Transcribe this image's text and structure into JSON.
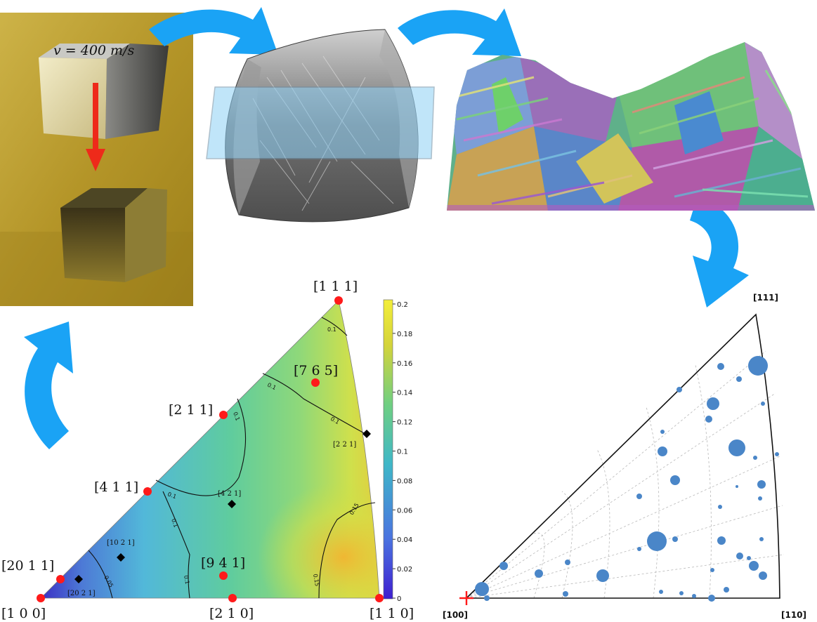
{
  "panel_impact": {
    "velocity_label": "v = 400 m/s"
  },
  "colors": {
    "arrow_blue": "#1aa3f5",
    "impact_background": "#b89a2a",
    "point_red": "#ff1a1a",
    "pole_marker_blue": "#4a86c8",
    "section_plane": "#8ed0f5"
  },
  "ipf_contour": {
    "pole_labels": {
      "p111": "[1 1 1]",
      "p765": "[7 6 5]",
      "p211": "[2 1 1]",
      "p411": "[4 1 1]",
      "p2011": "[20 1 1]",
      "p941": "[9 4 1]",
      "p100": "[1 0 0]",
      "p210": "[2 1 0]",
      "p110": "[1 1 0]",
      "p221": "[2 2 1]",
      "p421": "[4 2 1]",
      "p1021": "[10 2 1]",
      "p2021": "[20 2 1]"
    },
    "contour_labels": {
      "c1": "0.1",
      "c2": "0.1",
      "c3": "0.1",
      "c4": "0.1",
      "c5": "0.1",
      "c6": "0.1",
      "c7": "0.1",
      "c8": "0.15",
      "c9": "0.15",
      "c10": "0.05"
    },
    "colorbar_ticks": [
      "0.2",
      "0.18",
      "0.16",
      "0.14",
      "0.12",
      "0.1",
      "0.08",
      "0.06",
      "0.04",
      "0.02",
      "0"
    ]
  },
  "chart_data": {
    "type": "scatter",
    "title": "",
    "corner_labels": {
      "top": "[111]",
      "origin": "[100]",
      "right": "[110]"
    },
    "marker_style": "filled circles sized by value",
    "grid": true
  }
}
